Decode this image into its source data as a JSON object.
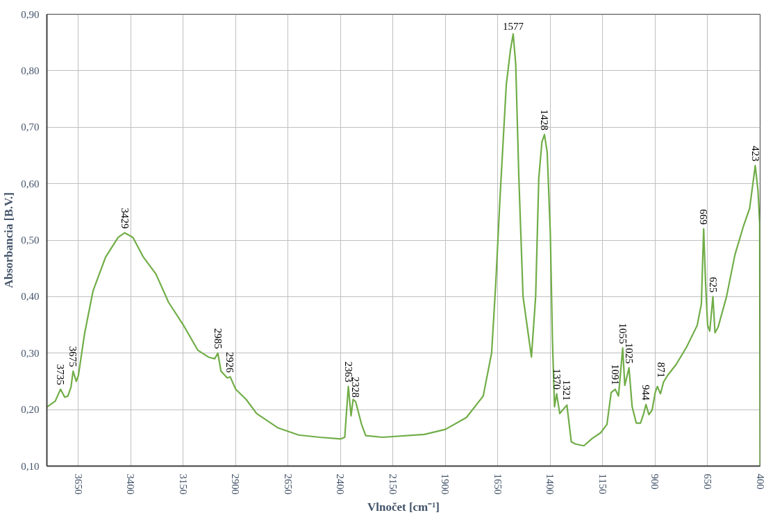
{
  "chart_data": {
    "type": "line",
    "xlabel": "Vlnočet [cm⁻¹]",
    "ylabel": "Absorbancia [B.V.]",
    "xlim": [
      3800,
      400
    ],
    "ylim": [
      0.1,
      0.9
    ],
    "xticks": [
      3650,
      3400,
      3150,
      2900,
      2650,
      2400,
      2150,
      1900,
      1650,
      1400,
      1150,
      900,
      650,
      400
    ],
    "yticks": [
      {
        "value": 0.1,
        "label": "0,10"
      },
      {
        "value": 0.2,
        "label": "0,20"
      },
      {
        "value": 0.3,
        "label": "0,30"
      },
      {
        "value": 0.4,
        "label": "0,40"
      },
      {
        "value": 0.5,
        "label": "0,50"
      },
      {
        "value": 0.6,
        "label": "0,60"
      },
      {
        "value": 0.7,
        "label": "0,70"
      },
      {
        "value": 0.8,
        "label": "0,80"
      },
      {
        "value": 0.9,
        "label": "0,90"
      }
    ],
    "grid": true,
    "marker": "none",
    "line_style": "solid",
    "series": [
      {
        "color": "#70ad47",
        "x": [
          3798,
          3760,
          3735,
          3715,
          3700,
          3685,
          3675,
          3660,
          3650,
          3620,
          3580,
          3520,
          3460,
          3429,
          3390,
          3340,
          3280,
          3220,
          3150,
          3080,
          3030,
          3000,
          2985,
          2970,
          2940,
          2926,
          2900,
          2850,
          2800,
          2700,
          2600,
          2500,
          2400,
          2380,
          2363,
          2350,
          2340,
          2328,
          2300,
          2280,
          2200,
          2000,
          1900,
          1800,
          1720,
          1680,
          1660,
          1640,
          1610,
          1590,
          1577,
          1565,
          1550,
          1530,
          1490,
          1470,
          1455,
          1440,
          1428,
          1415,
          1400,
          1390,
          1380,
          1370,
          1355,
          1321,
          1300,
          1280,
          1240,
          1200,
          1160,
          1130,
          1110,
          1091,
          1075,
          1055,
          1045,
          1025,
          1010,
          990,
          970,
          955,
          944,
          930,
          915,
          900,
          890,
          875,
          860,
          840,
          800,
          750,
          700,
          680,
          669,
          660,
          650,
          640,
          625,
          615,
          600,
          560,
          520,
          480,
          450,
          423,
          410,
          402,
          400
        ],
        "values": [
          0.205,
          0.215,
          0.236,
          0.222,
          0.224,
          0.24,
          0.268,
          0.25,
          0.26,
          0.335,
          0.41,
          0.47,
          0.505,
          0.513,
          0.505,
          0.47,
          0.44,
          0.39,
          0.35,
          0.305,
          0.293,
          0.29,
          0.3,
          0.268,
          0.256,
          0.258,
          0.236,
          0.218,
          0.193,
          0.168,
          0.155,
          0.151,
          0.148,
          0.151,
          0.241,
          0.189,
          0.218,
          0.214,
          0.174,
          0.154,
          0.151,
          0.156,
          0.165,
          0.186,
          0.224,
          0.3,
          0.424,
          0.574,
          0.775,
          0.837,
          0.865,
          0.812,
          0.61,
          0.4,
          0.293,
          0.4,
          0.61,
          0.674,
          0.687,
          0.656,
          0.512,
          0.324,
          0.205,
          0.228,
          0.193,
          0.208,
          0.143,
          0.139,
          0.136,
          0.149,
          0.159,
          0.174,
          0.23,
          0.236,
          0.224,
          0.309,
          0.243,
          0.274,
          0.205,
          0.176,
          0.176,
          0.193,
          0.209,
          0.191,
          0.199,
          0.23,
          0.241,
          0.228,
          0.249,
          0.261,
          0.28,
          0.311,
          0.349,
          0.387,
          0.52,
          0.424,
          0.349,
          0.339,
          0.4,
          0.336,
          0.346,
          0.4,
          0.474,
          0.524,
          0.556,
          0.632,
          0.587,
          0.53,
          0.1
        ]
      }
    ],
    "annotations": [
      {
        "text": "3735",
        "x": 3735,
        "y": 0.236
      },
      {
        "text": "3675",
        "x": 3675,
        "y": 0.268
      },
      {
        "text": "3429",
        "x": 3429,
        "y": 0.513
      },
      {
        "text": "2985",
        "x": 2985,
        "y": 0.3
      },
      {
        "text": "2926",
        "x": 2926,
        "y": 0.258
      },
      {
        "text": "2363",
        "x": 2363,
        "y": 0.241
      },
      {
        "text": "2328",
        "x": 2328,
        "y": 0.214
      },
      {
        "text": "1577",
        "x": 1577,
        "y": 0.865
      },
      {
        "text": "1428",
        "x": 1428,
        "y": 0.687
      },
      {
        "text": "1370",
        "x": 1370,
        "y": 0.228
      },
      {
        "text": "1321",
        "x": 1321,
        "y": 0.208
      },
      {
        "text": "1091",
        "x": 1091,
        "y": 0.236
      },
      {
        "text": "1055",
        "x": 1055,
        "y": 0.309
      },
      {
        "text": "1025",
        "x": 1025,
        "y": 0.274
      },
      {
        "text": "944",
        "x": 944,
        "y": 0.209
      },
      {
        "text": "871",
        "x": 871,
        "y": 0.249
      },
      {
        "text": "669",
        "x": 669,
        "y": 0.52
      },
      {
        "text": "625",
        "x": 625,
        "y": 0.4
      },
      {
        "text": "423",
        "x": 423,
        "y": 0.632
      }
    ]
  }
}
